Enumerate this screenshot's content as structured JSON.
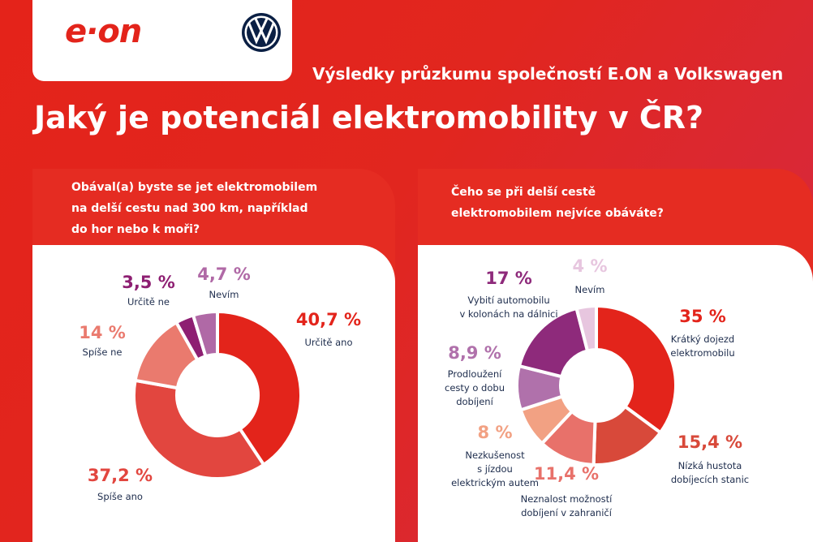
{
  "header": {
    "logo": "e·on",
    "subtitle": "Výsledky průzkumu společností E.ON a Volkswagen",
    "title": "Jaký je potenciál elektromobility v ČR?"
  },
  "chart_data": [
    {
      "type": "pie",
      "donut": true,
      "title": "Obával(a) byste se jet elektromobilem\nna delší cestu nad 300 km, například\ndo hor nebo k moři?",
      "categories": [
        "Určitě ano",
        "Spíše ano",
        "Spíše ne",
        "Určitě ne",
        "Nevím"
      ],
      "values": [
        40.7,
        37.2,
        14,
        3.5,
        4.7
      ],
      "value_labels": [
        "40,7 %",
        "37,2 %",
        "14 %",
        "3,5 %",
        "4,7 %"
      ],
      "colors": [
        "#e3241b",
        "#e2463f",
        "#ea7a6e",
        "#8e1f72",
        "#b069a6"
      ]
    },
    {
      "type": "pie",
      "donut": true,
      "title": "Čeho se při delší cestě\nelektromobilem nejvíce obáváte?",
      "categories": [
        "Krátký dojezd\nelektromobilu",
        "Nízká hustota\ndobíjecích stanic",
        "Neznalost možností\ndobíjení v zahraničí",
        "Nezkušenost\ns jízdou\nelektrickým autem",
        "Prodloužení\ncesty o dobu\ndobíjení",
        "Vybití automobilu\nv kolonách na dálnici",
        "Nevím"
      ],
      "values": [
        35,
        15.4,
        11.4,
        8,
        8.9,
        17,
        4
      ],
      "value_labels": [
        "35 %",
        "15,4 %",
        "11,4 %",
        "8 %",
        "8,9 %",
        "17 %",
        "4 %"
      ],
      "colors": [
        "#e3241b",
        "#d8493a",
        "#e8716a",
        "#f2a183",
        "#b071ab",
        "#8e2a7b",
        "#e7c6df"
      ]
    }
  ]
}
